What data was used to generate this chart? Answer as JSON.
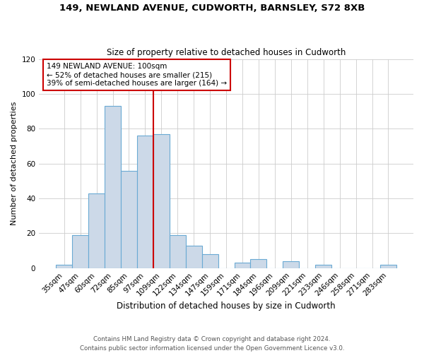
{
  "title": "149, NEWLAND AVENUE, CUDWORTH, BARNSLEY, S72 8XB",
  "subtitle": "Size of property relative to detached houses in Cudworth",
  "xlabel": "Distribution of detached houses by size in Cudworth",
  "ylabel": "Number of detached properties",
  "bar_labels": [
    "35sqm",
    "47sqm",
    "60sqm",
    "72sqm",
    "85sqm",
    "97sqm",
    "109sqm",
    "122sqm",
    "134sqm",
    "147sqm",
    "159sqm",
    "171sqm",
    "184sqm",
    "196sqm",
    "209sqm",
    "221sqm",
    "233sqm",
    "246sqm",
    "258sqm",
    "271sqm",
    "283sqm"
  ],
  "bar_values": [
    2,
    19,
    43,
    93,
    56,
    76,
    77,
    19,
    13,
    8,
    0,
    3,
    5,
    0,
    4,
    0,
    2,
    0,
    0,
    0,
    2
  ],
  "bar_color": "#ccd9e8",
  "bar_edge_color": "#6aaad4",
  "reference_line_color": "#cc0000",
  "annotation_text": "149 NEWLAND AVENUE: 100sqm\n← 52% of detached houses are smaller (215)\n39% of semi-detached houses are larger (164) →",
  "annotation_box_color": "#ffffff",
  "annotation_box_edge": "#cc0000",
  "ylim": [
    0,
    120
  ],
  "yticks": [
    0,
    20,
    40,
    60,
    80,
    100,
    120
  ],
  "footer_line1": "Contains HM Land Registry data © Crown copyright and database right 2024.",
  "footer_line2": "Contains public sector information licensed under the Open Government Licence v3.0.",
  "background_color": "#ffffff",
  "grid_color": "#cccccc",
  "ref_bar_index": 5
}
